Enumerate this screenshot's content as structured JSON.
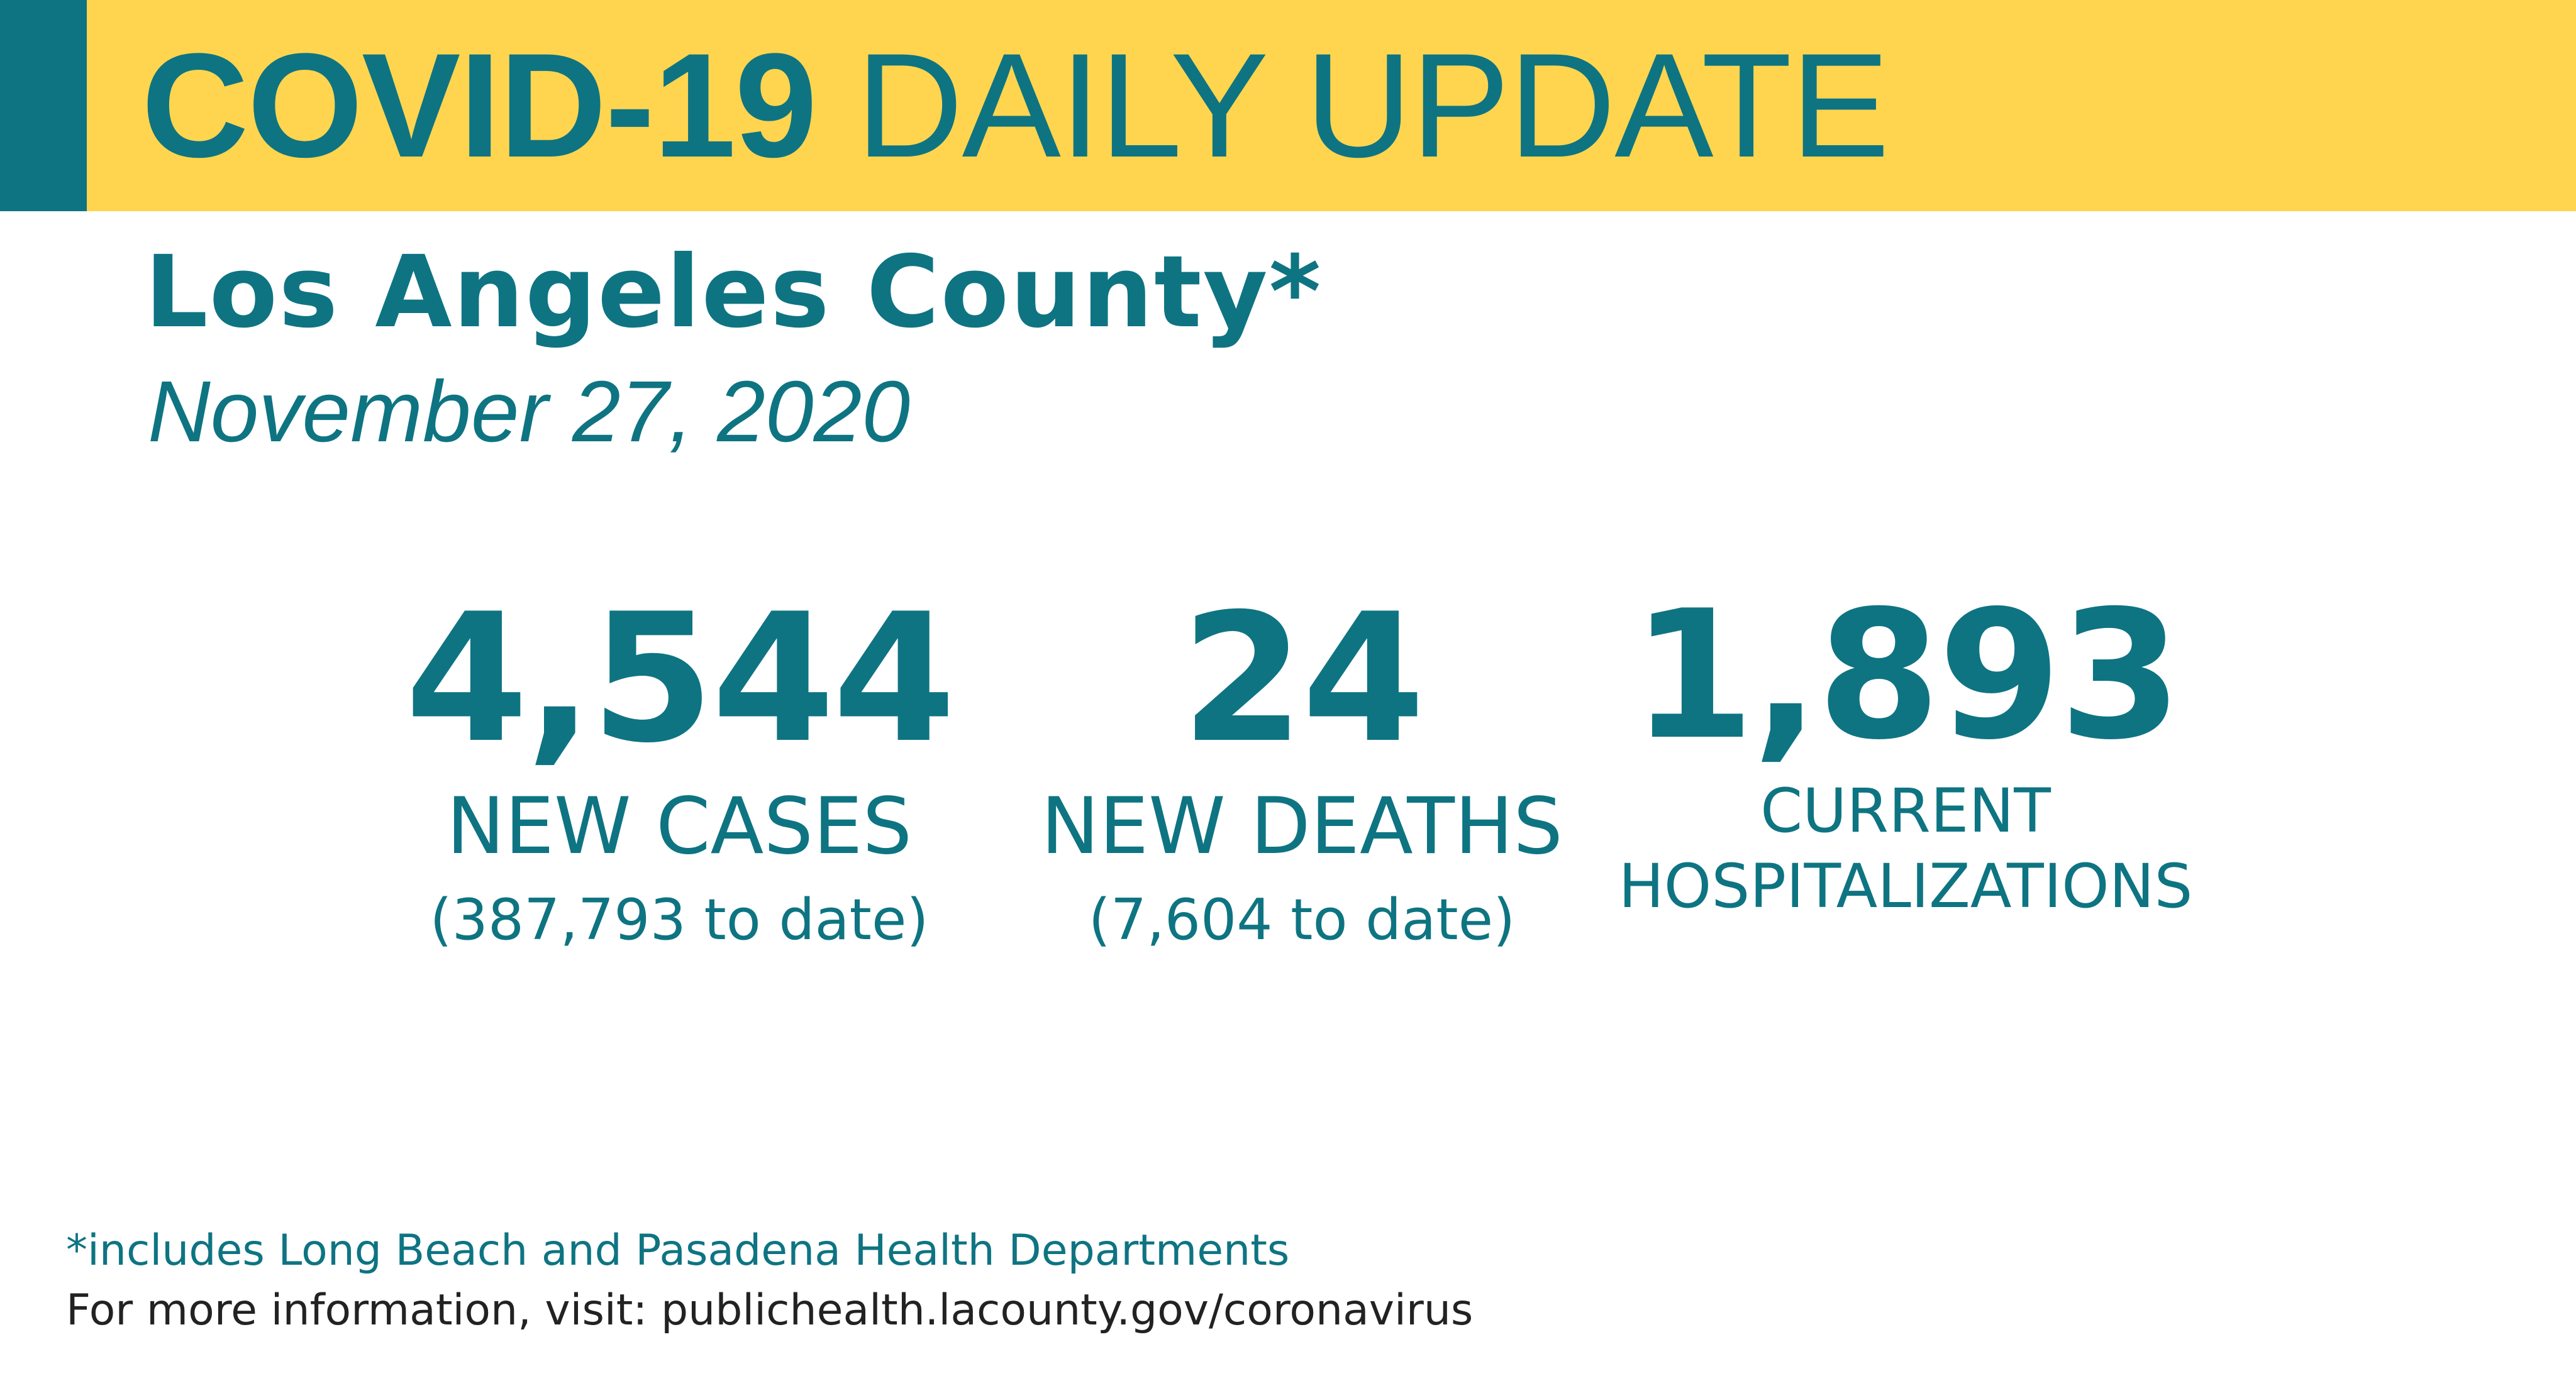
{
  "colors": {
    "banner_background": "#FFD54F",
    "accent_teal": "#0E7482",
    "text_dark": "#222222",
    "page_background": "#FFFFFF"
  },
  "header": {
    "title_bold": "COVID-19",
    "title_light": "DAILY UPDATE"
  },
  "location": {
    "name": "Los Angeles County*",
    "date": "November 27, 2020"
  },
  "stats": {
    "cases": {
      "value": "4,544",
      "label": "NEW CASES",
      "to_date": "(387,793 to date)"
    },
    "deaths": {
      "value": "24",
      "label": "NEW DEATHS",
      "to_date": "(7,604 to date)"
    },
    "hospitalizations": {
      "value": "1,893",
      "label_line1": "CURRENT",
      "label_line2": "HOSPITALIZATIONS"
    }
  },
  "footer": {
    "footnote": "*includes Long Beach and Pasadena Health Departments",
    "more_info": "For more information, visit: publichealth.lacounty.gov/coronavirus"
  }
}
